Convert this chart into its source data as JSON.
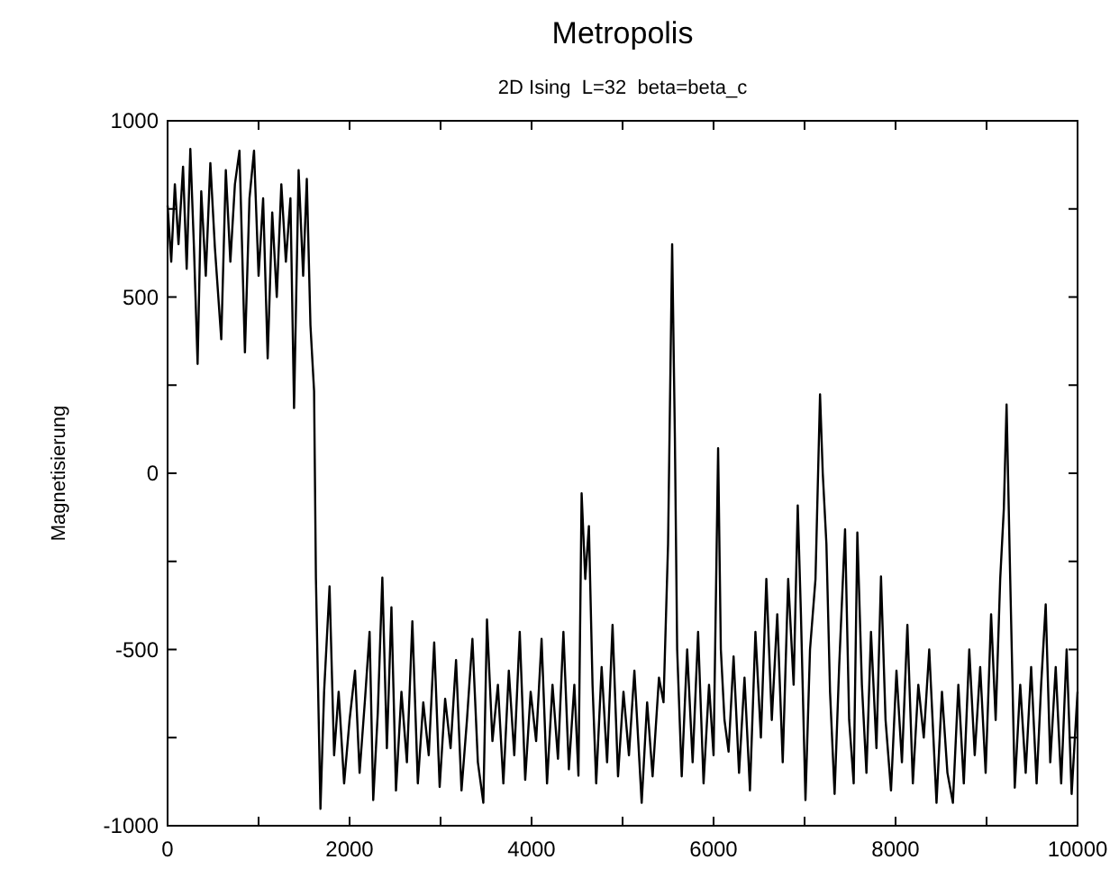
{
  "chart_data": {
    "type": "line",
    "title": "Metropolis",
    "subtitle": "2D Ising  L=32  beta=beta_c",
    "ylabel": "Magnetisierung",
    "xlim": [
      0,
      10000
    ],
    "ylim": [
      -1000,
      1000
    ],
    "xticks": [
      0,
      {
        "value": 1000,
        "label": null
      },
      2000,
      {
        "value": 3000,
        "label": null
      },
      4000,
      {
        "value": 5000,
        "label": null
      },
      6000,
      {
        "value": 7000,
        "label": null
      },
      8000,
      {
        "value": 9000,
        "label": null
      },
      10000
    ],
    "yticks": [
      -1000,
      {
        "value": -750,
        "label": null
      },
      -500,
      {
        "value": -250,
        "label": null
      },
      0,
      {
        "value": 250,
        "label": null
      },
      500,
      {
        "value": 750,
        "label": null
      },
      1000
    ],
    "grid": false,
    "marker": "none",
    "line_style": "solid",
    "x": [
      0,
      40,
      80,
      120,
      170,
      210,
      250,
      290,
      330,
      370,
      420,
      470,
      520,
      590,
      640,
      690,
      740,
      790,
      850,
      900,
      950,
      1000,
      1050,
      1100,
      1150,
      1200,
      1250,
      1300,
      1350,
      1390,
      1440,
      1490,
      1530,
      1570,
      1610,
      1630,
      1680,
      1720,
      1780,
      1830,
      1880,
      1940,
      2000,
      2060,
      2110,
      2170,
      2220,
      2260,
      2310,
      2360,
      2410,
      2460,
      2510,
      2570,
      2630,
      2690,
      2750,
      2810,
      2870,
      2930,
      2990,
      3050,
      3110,
      3170,
      3230,
      3290,
      3350,
      3410,
      3470,
      3510,
      3570,
      3630,
      3690,
      3750,
      3810,
      3870,
      3930,
      3990,
      4050,
      4110,
      4170,
      4230,
      4290,
      4350,
      4410,
      4470,
      4515,
      4550,
      4590,
      4630,
      4670,
      4710,
      4770,
      4830,
      4890,
      4950,
      5010,
      5070,
      5130,
      5210,
      5270,
      5330,
      5400,
      5450,
      5500,
      5545,
      5575,
      5600,
      5650,
      5710,
      5770,
      5830,
      5890,
      5950,
      6000,
      6050,
      6080,
      6120,
      6165,
      6220,
      6280,
      6340,
      6400,
      6460,
      6520,
      6580,
      6640,
      6700,
      6760,
      6820,
      6880,
      6925,
      6960,
      7010,
      7060,
      7120,
      7170,
      7200,
      7240,
      7280,
      7330,
      7380,
      7445,
      7490,
      7540,
      7580,
      7630,
      7680,
      7730,
      7790,
      7840,
      7890,
      7950,
      8010,
      8070,
      8130,
      8190,
      8250,
      8310,
      8370,
      8450,
      8510,
      8570,
      8630,
      8690,
      8750,
      8810,
      8870,
      8930,
      8990,
      9050,
      9100,
      9150,
      9190,
      9220,
      9260,
      9310,
      9370,
      9430,
      9490,
      9550,
      9600,
      9650,
      9700,
      9760,
      9820,
      9880,
      9935,
      10000
    ],
    "series": [
      {
        "color": "#000000",
        "values": [
          760,
          600,
          820,
          650,
          870,
          580,
          920,
          640,
          310,
          800,
          560,
          880,
          640,
          380,
          860,
          600,
          820,
          915,
          343,
          780,
          915,
          560,
          780,
          326,
          740,
          500,
          820,
          600,
          780,
          185,
          860,
          560,
          835,
          420,
          233,
          -296,
          -952,
          -620,
          -321,
          -800,
          -620,
          -880,
          -700,
          -560,
          -850,
          -640,
          -450,
          -927,
          -680,
          -296,
          -780,
          -380,
          -900,
          -620,
          -820,
          -420,
          -880,
          -650,
          -800,
          -480,
          -890,
          -640,
          -780,
          -530,
          -900,
          -700,
          -470,
          -820,
          -935,
          -415,
          -760,
          -600,
          -880,
          -560,
          -800,
          -450,
          -870,
          -620,
          -760,
          -470,
          -880,
          -600,
          -810,
          -450,
          -840,
          -600,
          -858,
          -57,
          -300,
          -150,
          -600,
          -880,
          -550,
          -820,
          -430,
          -860,
          -620,
          -800,
          -560,
          -935,
          -650,
          -860,
          -580,
          -650,
          -200,
          650,
          100,
          -500,
          -860,
          -500,
          -820,
          -450,
          -880,
          -600,
          -800,
          71,
          -500,
          -700,
          -790,
          -520,
          -850,
          -580,
          -900,
          -450,
          -750,
          -300,
          -700,
          -400,
          -820,
          -300,
          -600,
          -91,
          -400,
          -927,
          -500,
          -300,
          224,
          0,
          -200,
          -620,
          -910,
          -550,
          -159,
          -700,
          -880,
          -168,
          -600,
          -850,
          -450,
          -780,
          -293,
          -700,
          -900,
          -560,
          -820,
          -430,
          -880,
          -600,
          -750,
          -500,
          -935,
          -620,
          -850,
          -935,
          -600,
          -880,
          -500,
          -800,
          -550,
          -850,
          -400,
          -700,
          -300,
          -100,
          195,
          -300,
          -892,
          -600,
          -850,
          -550,
          -880,
          -600,
          -372,
          -820,
          -550,
          -880,
          -500,
          -910,
          -620
        ]
      }
    ]
  }
}
